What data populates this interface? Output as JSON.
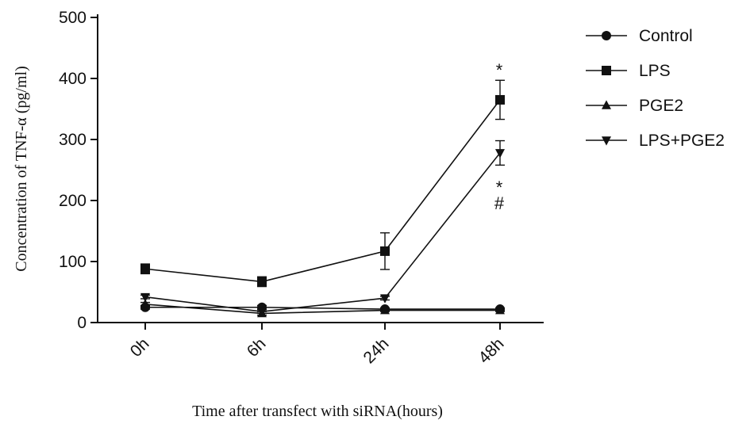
{
  "chart_data": {
    "type": "line",
    "categories": [
      "0h",
      "6h",
      "24h",
      "48h"
    ],
    "xlabel": "Time after transfect with siRNA(hours)",
    "ylabel": "Concentration of TNF-α (pg/ml)",
    "ylim": [
      0,
      500
    ],
    "yticks": [
      0,
      100,
      200,
      300,
      400,
      500
    ],
    "grid": false,
    "legend_position": "right",
    "series": [
      {
        "name": "Control",
        "marker": "circle",
        "values": [
          25,
          25,
          22,
          22
        ],
        "err": [
          3,
          3,
          2,
          2
        ]
      },
      {
        "name": "LPS",
        "marker": "square",
        "values": [
          88,
          67,
          117,
          365
        ],
        "err": [
          8,
          8,
          30,
          32
        ]
      },
      {
        "name": "PGE2",
        "marker": "triangle-up",
        "values": [
          30,
          15,
          20,
          20
        ],
        "err": [
          3,
          3,
          2,
          2
        ]
      },
      {
        "name": "LPS+PGE2",
        "marker": "triangle-down",
        "values": [
          42,
          18,
          40,
          278
        ],
        "err": [
          3,
          3,
          3,
          20
        ]
      }
    ],
    "annotations": [
      {
        "text": "*",
        "series": "LPS",
        "x": "48h"
      },
      {
        "text": "*",
        "series": "LPS+PGE2",
        "x": "48h"
      },
      {
        "text": "#",
        "series": "LPS+PGE2",
        "x": "48h"
      }
    ]
  }
}
